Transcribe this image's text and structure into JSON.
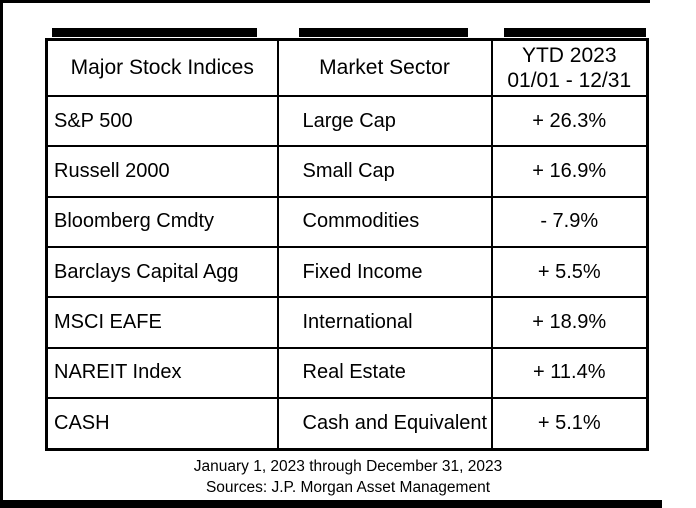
{
  "chart_data": {
    "type": "table",
    "columns": {
      "indices": "Major Stock Indices",
      "sector": "Market Sector",
      "ytd_line1": "YTD 2023",
      "ytd_line2": "01/01 - 12/31"
    },
    "rows": [
      {
        "index": "S&P 500",
        "sector": "Large Cap",
        "ytd": "+ 26.3%",
        "ytd_value": 26.3
      },
      {
        "index": "Russell 2000",
        "sector": "Small Cap",
        "ytd": "+ 16.9%",
        "ytd_value": 16.9
      },
      {
        "index": "Bloomberg Cmdty",
        "sector": "Commodities",
        "ytd": "- 7.9%",
        "ytd_value": -7.9
      },
      {
        "index": "Barclays Capital Agg",
        "sector": "Fixed Income",
        "ytd": "+ 5.5%",
        "ytd_value": 5.5
      },
      {
        "index": "MSCI EAFE",
        "sector": "International",
        "ytd": "+ 18.9%",
        "ytd_value": 18.9
      },
      {
        "index": "NAREIT Index",
        "sector": "Real Estate",
        "ytd": "+ 11.4%",
        "ytd_value": 11.4
      },
      {
        "index": "CASH",
        "sector": "Cash and Equivalent",
        "ytd": "+ 5.1%",
        "ytd_value": 5.1
      }
    ],
    "footnotes": {
      "line1": "January 1, 2023 through December 31, 2023",
      "line2": "Sources: J.P. Morgan Asset Management"
    }
  },
  "colors": {
    "border": "#000000",
    "background": "#ffffff",
    "text": "#000000"
  }
}
